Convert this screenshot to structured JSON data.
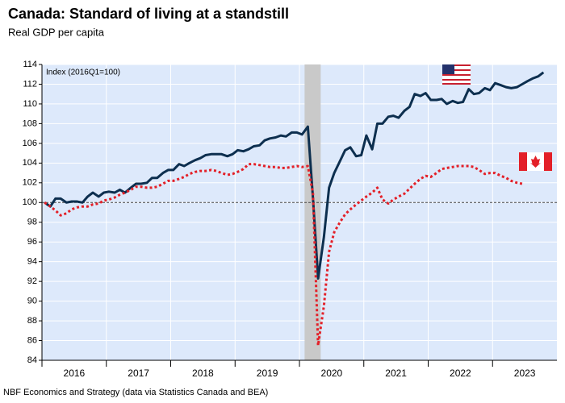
{
  "chart_data": {
    "type": "line",
    "title": "Canada: Standard of living at a standstill",
    "subtitle": "Real GDP per capita",
    "annotation": "Index (2016Q1=100)",
    "source": "NBF Economics and Strategy (data via Statistics Canada and BEA)",
    "x": [
      2016.04,
      2016.13,
      2016.21,
      2016.29,
      2016.38,
      2016.46,
      2016.54,
      2016.63,
      2016.71,
      2016.79,
      2016.88,
      2016.96,
      2017.04,
      2017.13,
      2017.21,
      2017.29,
      2017.38,
      2017.46,
      2017.54,
      2017.63,
      2017.71,
      2017.79,
      2017.88,
      2017.96,
      2018.04,
      2018.13,
      2018.21,
      2018.29,
      2018.38,
      2018.46,
      2018.54,
      2018.63,
      2018.71,
      2018.79,
      2018.88,
      2018.96,
      2019.04,
      2019.13,
      2019.21,
      2019.29,
      2019.38,
      2019.46,
      2019.54,
      2019.63,
      2019.71,
      2019.79,
      2019.88,
      2019.96,
      2020.04,
      2020.13,
      2020.21,
      2020.29,
      2020.38,
      2020.46,
      2020.54,
      2020.63,
      2020.71,
      2020.79,
      2020.88,
      2020.96,
      2021.04,
      2021.13,
      2021.21,
      2021.29,
      2021.38,
      2021.46,
      2021.54,
      2021.63,
      2021.71,
      2021.79,
      2021.88,
      2021.96,
      2022.04,
      2022.13,
      2022.21,
      2022.29,
      2022.38,
      2022.46,
      2022.54,
      2022.63,
      2022.71,
      2022.79,
      2022.88,
      2022.96,
      2023.04,
      2023.13,
      2023.21,
      2023.29,
      2023.38,
      2023.46,
      2023.54,
      2023.63,
      2023.71,
      2023.79
    ],
    "series": [
      {
        "color": "#0d2f4f",
        "dash": false,
        "values": [
          100,
          99.6,
          100.4,
          100.4,
          100,
          100.1,
          100.1,
          100,
          100.6,
          101.0,
          100.6,
          101.0,
          101.1,
          101.0,
          101.3,
          101.0,
          101.5,
          101.9,
          101.9,
          102.0,
          102.5,
          102.5,
          103.0,
          103.3,
          103.3,
          103.9,
          103.7,
          104.0,
          104.3,
          104.5,
          104.8,
          104.9,
          104.9,
          104.9,
          104.7,
          104.9,
          105.3,
          105.2,
          105.4,
          105.7,
          105.8,
          106.3,
          106.5,
          106.6,
          106.8,
          106.7,
          107.1,
          107.1,
          106.9,
          107.7,
          100.5,
          92.3,
          96.5,
          101.5,
          103.0,
          104.2,
          105.3,
          105.6,
          104.7,
          104.8,
          106.8,
          105.4,
          108.0,
          108.0,
          108.7,
          108.8,
          108.6,
          109.3,
          109.7,
          111.0,
          110.8,
          111.1,
          110.4,
          110.4,
          110.5,
          110.0,
          110.3,
          110.1,
          110.2,
          111.5,
          111.0,
          111.1,
          111.6,
          111.4,
          112.1,
          111.9,
          111.7,
          111.6,
          111.7,
          112.0,
          112.3,
          112.6,
          112.8,
          113.2
        ]
      },
      {
        "color": "#e32028",
        "dash": true,
        "values": [
          100,
          99.6,
          99.2,
          98.7,
          98.9,
          99.3,
          99.5,
          99.6,
          99.6,
          99.8,
          99.9,
          100.2,
          100.3,
          100.5,
          100.8,
          101.0,
          101.3,
          101.6,
          101.6,
          101.5,
          101.5,
          101.6,
          101.9,
          102.2,
          102.2,
          102.4,
          102.6,
          102.9,
          103.1,
          103.2,
          103.2,
          103.3,
          103.2,
          103.0,
          102.8,
          102.9,
          103.1,
          103.4,
          103.9,
          103.9,
          103.8,
          103.7,
          103.6,
          103.6,
          103.5,
          103.5,
          103.6,
          103.7,
          103.6,
          103.7,
          101.0,
          85.5,
          89.5,
          95.0,
          97.0,
          98.0,
          98.8,
          99.3,
          99.8,
          100.2,
          100.6,
          101.0,
          101.5,
          100.3,
          99.9,
          100.3,
          100.6,
          100.9,
          101.4,
          101.9,
          102.4,
          102.7,
          102.6,
          103.0,
          103.4,
          103.5,
          103.6,
          103.7,
          103.7,
          103.7,
          103.6,
          103.3,
          102.9,
          103.0,
          103.0,
          102.7,
          102.5,
          102.2,
          102.0,
          101.9,
          null,
          null,
          null,
          null
        ]
      }
    ],
    "recession": [
      2020.08,
      2020.33
    ],
    "reference_line": 100,
    "xlim": [
      2016,
      2024
    ],
    "xticks": [
      {
        "value": 2016,
        "label": "2016"
      },
      {
        "value": 2017,
        "label": "2017"
      },
      {
        "value": 2018,
        "label": "2018"
      },
      {
        "value": 2019,
        "label": "2019"
      },
      {
        "value": 2020,
        "label": "2020"
      },
      {
        "value": 2021,
        "label": "2021"
      },
      {
        "value": 2022,
        "label": "2022"
      },
      {
        "value": 2023,
        "label": "2023"
      }
    ],
    "ylim": [
      84,
      114
    ],
    "yticks": [
      84,
      86,
      88,
      90,
      92,
      94,
      96,
      98,
      100,
      102,
      104,
      106,
      108,
      110,
      112,
      114
    ],
    "grid": true
  }
}
